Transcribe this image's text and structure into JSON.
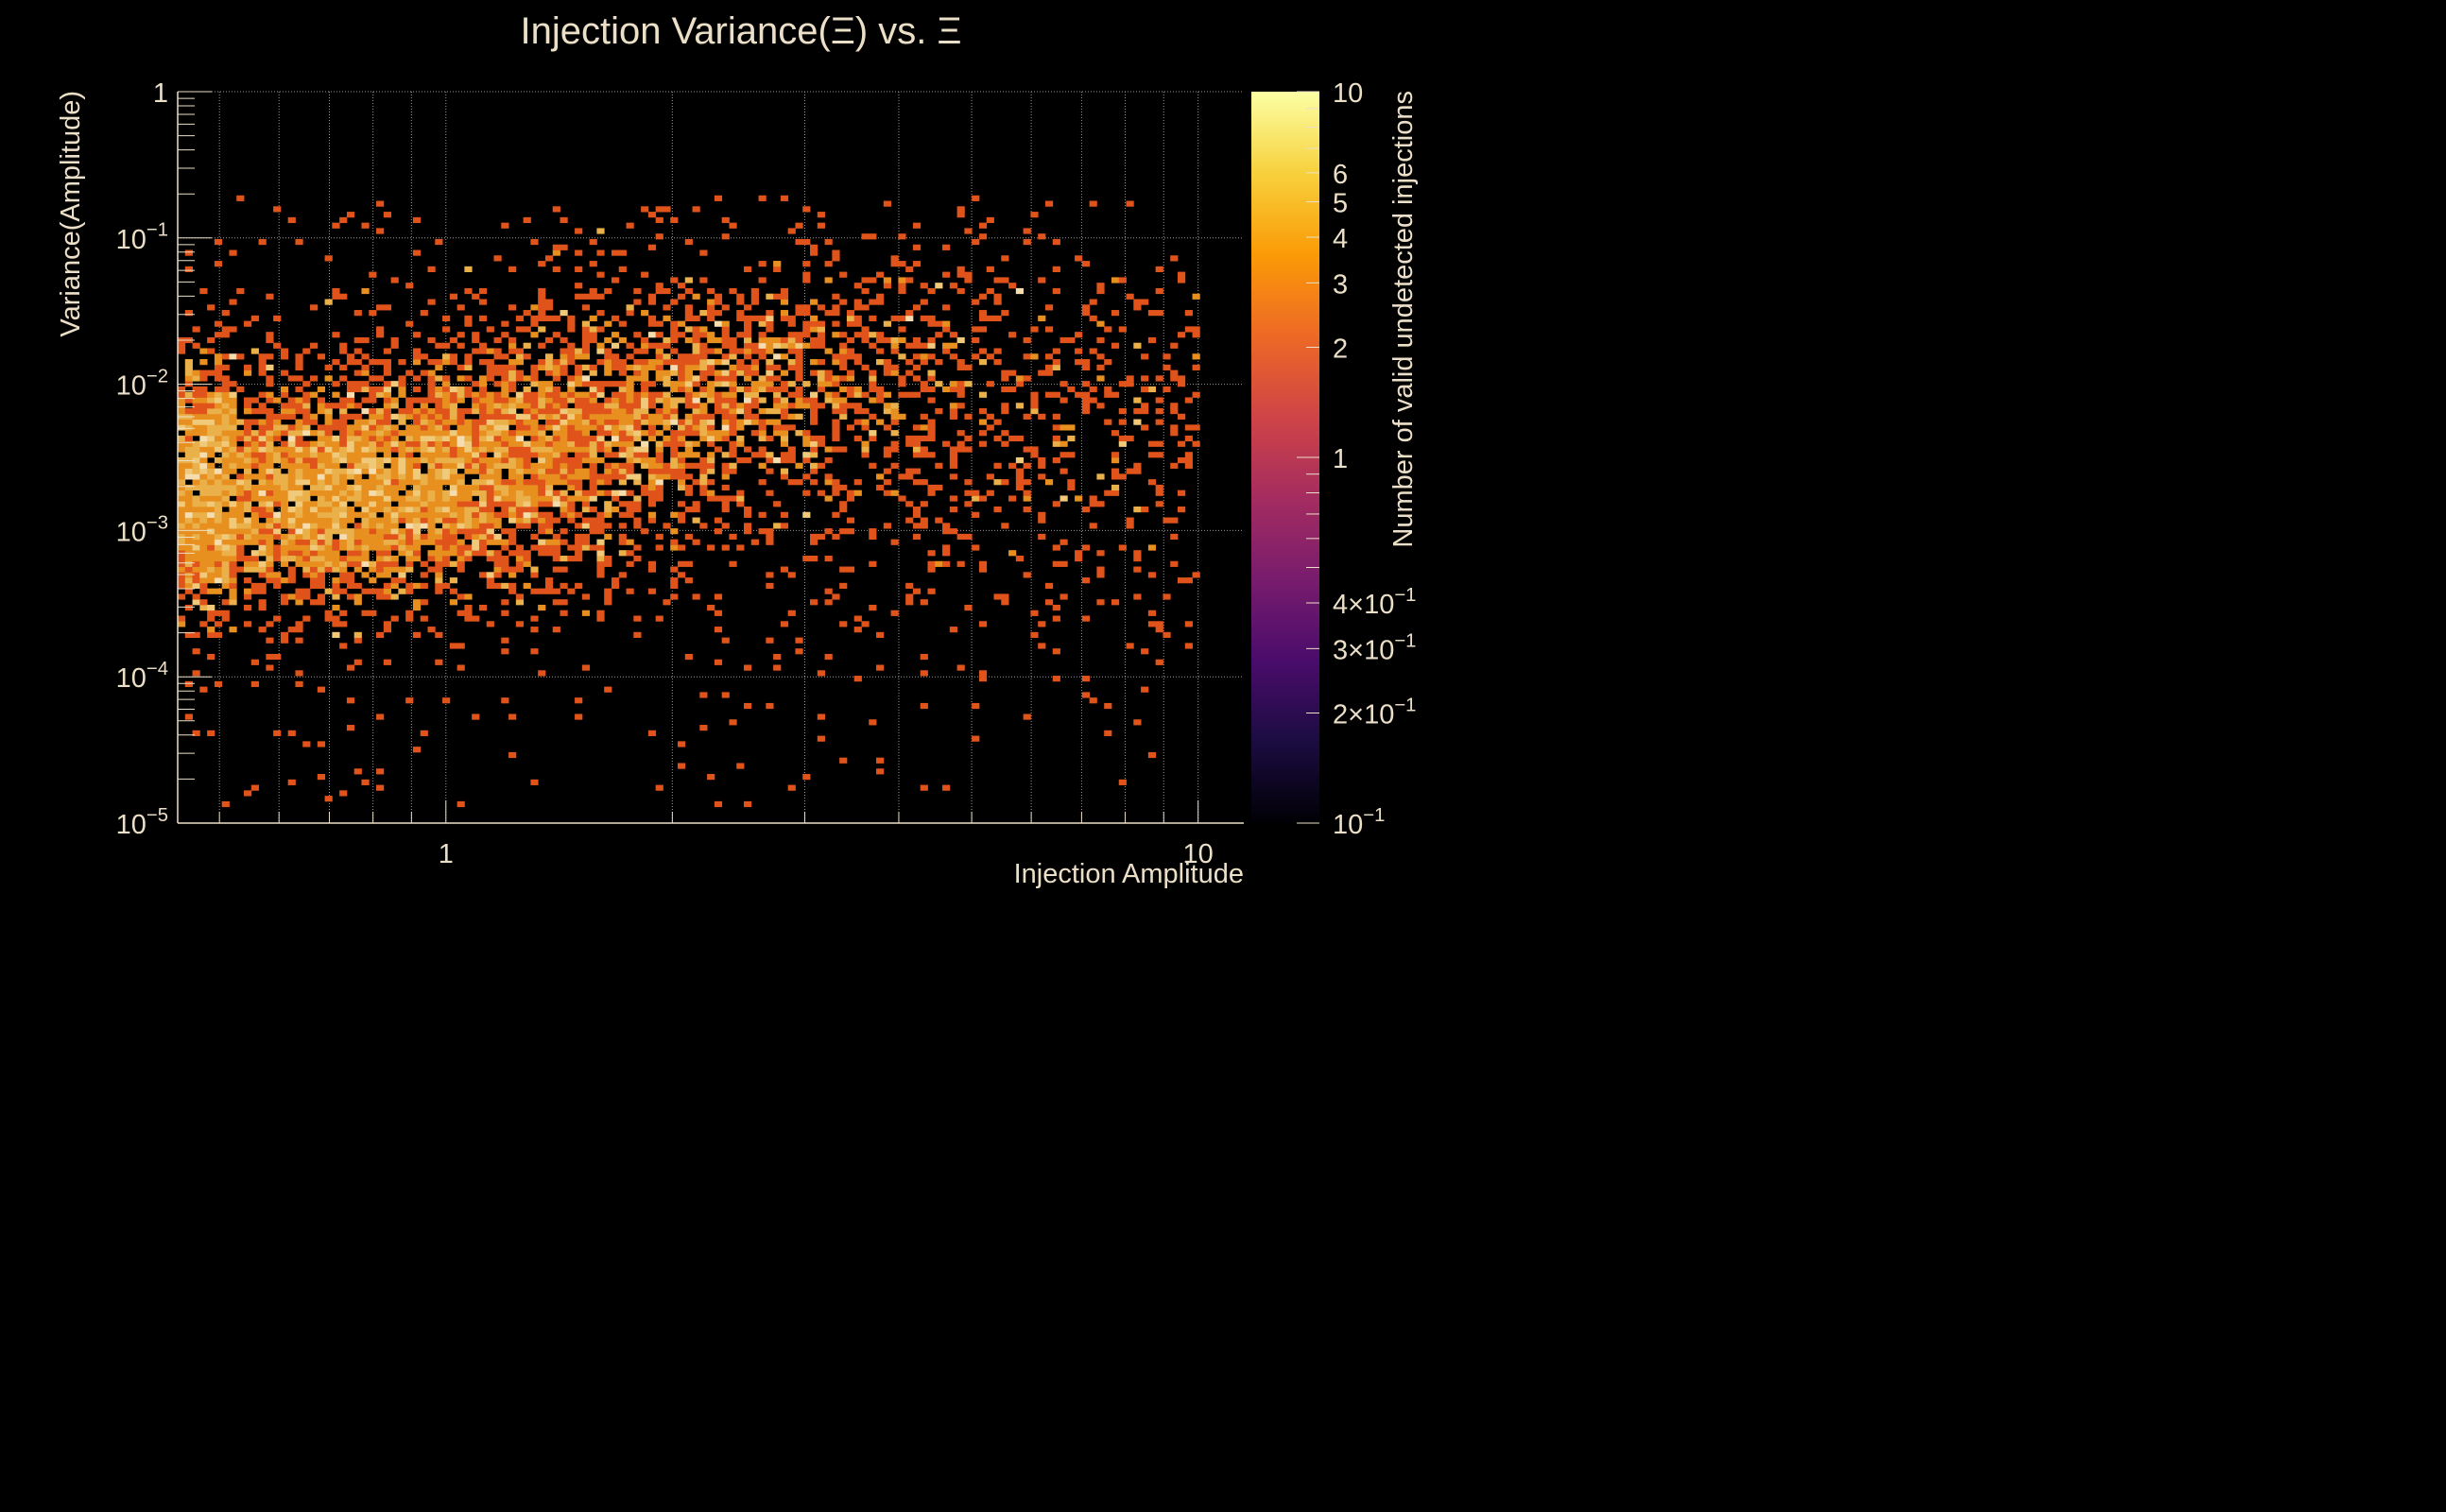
{
  "chart_data": {
    "type": "heatmap",
    "title": "Injection Variance(Ξ) vs. Ξ",
    "xlabel": "Injection Amplitude",
    "ylabel": "Variance(Amplitude)",
    "zlabel": "Number of valid undetected injections",
    "x_scale": "log",
    "y_scale": "log",
    "z_scale": "log",
    "xlim": [
      0.44,
      11.5
    ],
    "ylim": [
      1e-05,
      1
    ],
    "zlim": [
      0.1,
      10
    ],
    "grid": true,
    "x_ticks": [
      {
        "value": 1,
        "label": "1"
      },
      {
        "value": 10,
        "label": "10"
      }
    ],
    "y_ticks": [
      {
        "value": 1,
        "base": "1",
        "exp": ""
      },
      {
        "value": 0.1,
        "base": "10",
        "exp": "−1"
      },
      {
        "value": 0.01,
        "base": "10",
        "exp": "−2"
      },
      {
        "value": 0.001,
        "base": "10",
        "exp": "−3"
      },
      {
        "value": 0.0001,
        "base": "10",
        "exp": "−4"
      },
      {
        "value": 1e-05,
        "base": "10",
        "exp": "−5"
      }
    ],
    "z_ticks": [
      {
        "value": 10,
        "base": "10",
        "exp": ""
      },
      {
        "value": 6,
        "base": "6",
        "exp": ""
      },
      {
        "value": 5,
        "base": "5",
        "exp": ""
      },
      {
        "value": 4,
        "base": "4",
        "exp": ""
      },
      {
        "value": 3,
        "base": "3",
        "exp": ""
      },
      {
        "value": 2,
        "base": "2",
        "exp": ""
      },
      {
        "value": 1,
        "base": "1",
        "exp": ""
      },
      {
        "value": 0.4,
        "base": "4×10",
        "exp": "−1"
      },
      {
        "value": 0.3,
        "base": "3×10",
        "exp": "−1"
      },
      {
        "value": 0.2,
        "base": "2×10",
        "exp": "−1"
      },
      {
        "value": 0.1,
        "base": "10",
        "exp": "−1"
      }
    ],
    "colormap": "inferno",
    "colormap_stops": [
      "#000004",
      "#1b0c41",
      "#4a0c6b",
      "#781c6d",
      "#a52c60",
      "#cf4446",
      "#ed6925",
      "#fb9b06",
      "#f7d13d",
      "#fcffa4"
    ],
    "count_colors": {
      "1": "#e0531a",
      "2": "#e8901f",
      "3": "#eab04a",
      "4": "#f0ca7a",
      "5": "#f6ddb0"
    },
    "bins": {
      "nx": 145,
      "ny": 134,
      "x_range": [
        0.44,
        11.5
      ],
      "y_range": [
        1e-05,
        1
      ]
    },
    "cells": [
      [
        0.93,
        0.0121,
        1
      ],
      [
        1.0,
        0.0083,
        2
      ],
      [
        1.1,
        0.0078,
        1
      ],
      [
        0.55,
        0.0063,
        2
      ],
      [
        0.85,
        0.0021,
        1
      ],
      [
        0.51,
        0.00076,
        4
      ],
      [
        0.62,
        0.00065,
        3
      ],
      [
        0.7,
        0.00088,
        3
      ],
      [
        0.78,
        0.00102,
        2
      ],
      [
        1.23,
        0.0013,
        2
      ],
      [
        1.55,
        0.0151,
        2
      ],
      [
        1.74,
        0.0188,
        1
      ],
      [
        2.1,
        0.0115,
        2
      ],
      [
        2.6,
        0.0048,
        1
      ],
      [
        3.3,
        0.0021,
        1
      ],
      [
        4.2,
        0.0011,
        1
      ],
      [
        5.0,
        0.0058,
        1
      ],
      [
        6.6,
        0.0026,
        1
      ],
      [
        8.5,
        0.0091,
        1
      ],
      [
        9.6,
        0.0224,
        1
      ],
      [
        0.64,
        0.00021,
        1
      ],
      [
        0.74,
        0.00012,
        1
      ],
      [
        0.9,
        7.1e-05,
        1
      ],
      [
        1.35,
        0.000102,
        1
      ],
      [
        2.5,
        6.6e-05,
        1
      ],
      [
        1.9,
        0.147,
        1
      ],
      [
        2.4,
        0.125,
        1
      ],
      [
        3.0,
        0.095,
        1
      ],
      [
        3.9,
        0.168,
        1
      ],
      [
        5.1,
        0.0355,
        1
      ],
      [
        6.2,
        0.102,
        1
      ],
      [
        7.7,
        0.0309,
        1
      ],
      [
        0.81,
        1.78e-05,
        1
      ],
      [
        1.3,
        1.95e-05,
        1
      ],
      [
        0.59,
        0.00051,
        2
      ]
    ]
  }
}
